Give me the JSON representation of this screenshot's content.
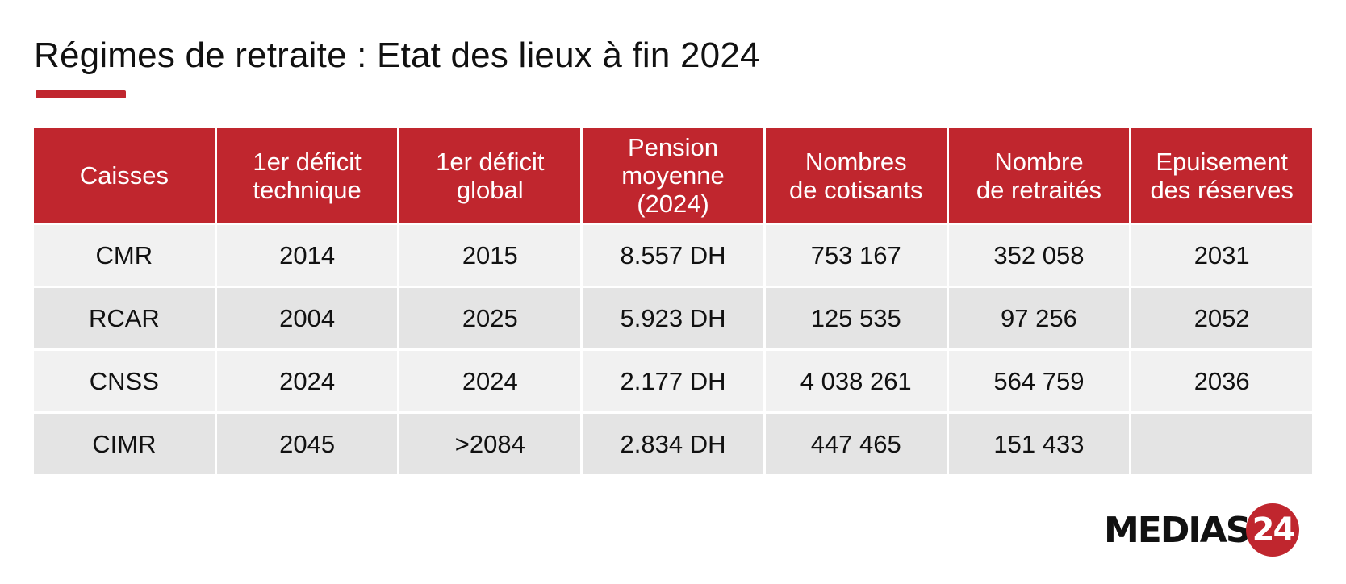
{
  "title": "Régimes de retraite : Etat des lieux à fin 2024",
  "brand": {
    "name": "MEDIAS",
    "number": "24",
    "accent_color": "#c0262e"
  },
  "chart_data": {
    "type": "table",
    "title": "Régimes de retraite : Etat des lieux à fin 2024",
    "columns": [
      [
        "Caisses"
      ],
      [
        "1er déficit",
        "technique"
      ],
      [
        "1er déficit",
        "global"
      ],
      [
        "Pension",
        "moyenne",
        "(2024)"
      ],
      [
        "Nombres",
        "de cotisants"
      ],
      [
        "Nombre",
        "de retraités"
      ],
      [
        "Epuisement",
        "des réserves"
      ]
    ],
    "rows": [
      [
        "CMR",
        "2014",
        "2015",
        "8.557 DH",
        "753 167",
        "352 058",
        "2031"
      ],
      [
        "RCAR",
        "2004",
        "2025",
        "5.923 DH",
        "125 535",
        "97 256",
        "2052"
      ],
      [
        "CNSS",
        "2024",
        "2024",
        "2.177 DH",
        "4 038 261",
        "564 759",
        "2036"
      ],
      [
        "CIMR",
        "2045",
        ">2084",
        "2.834 DH",
        "447 465",
        "151 433",
        ""
      ]
    ]
  }
}
